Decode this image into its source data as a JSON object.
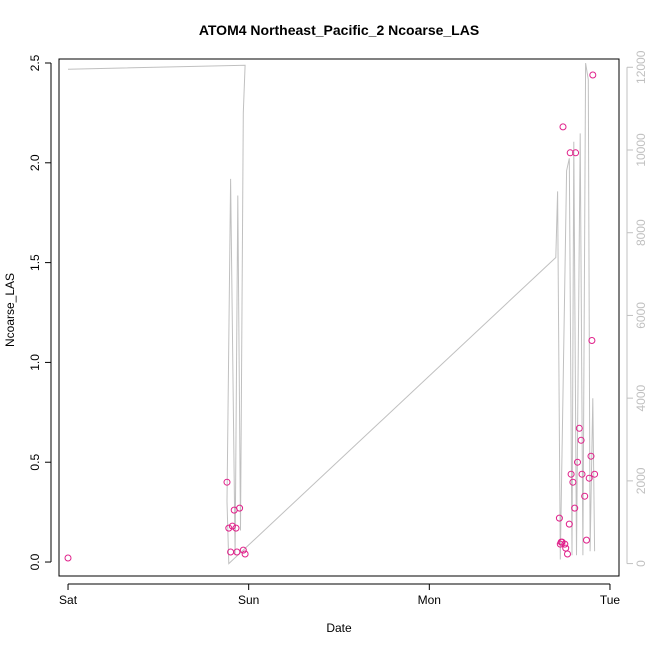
{
  "chart_data": {
    "type": "scatter",
    "title": "ATOM4 Northeast_Pacific_2 Ncoarse_LAS",
    "xlabel": "Date",
    "ylabel": "Ncoarse_LAS",
    "x_ticks": [
      "Sat",
      "Sun",
      "Mon",
      "Tue"
    ],
    "x_range_days": [
      -0.05,
      3.05
    ],
    "ylim": [
      -0.07,
      2.52
    ],
    "y_ticks": [
      "0.0",
      "0.5",
      "1.0",
      "1.5",
      "2.0",
      "2.5"
    ],
    "y_tick_values": [
      0,
      0.5,
      1.0,
      1.5,
      2.0,
      2.5
    ],
    "y2_ticks": [
      "0",
      "2000",
      "4000",
      "6000",
      "8000",
      "10000",
      "12000"
    ],
    "y2_tick_values": [
      0,
      2000,
      4000,
      6000,
      8000,
      10000,
      12000
    ],
    "y2_range": [
      -300,
      12200
    ],
    "grid": false,
    "colors": {
      "points": "#e0208a",
      "line": "#c0c0c0",
      "axis": "#000000",
      "y2_axis": "#c0c0c0"
    },
    "series": [
      {
        "kind": "points",
        "points": [
          [
            0.0,
            0.02
          ],
          [
            0.88,
            0.4
          ],
          [
            0.89,
            0.17
          ],
          [
            0.9,
            0.05
          ],
          [
            0.91,
            0.18
          ],
          [
            0.92,
            0.26
          ],
          [
            0.93,
            0.17
          ],
          [
            0.935,
            0.05
          ],
          [
            0.95,
            0.27
          ],
          [
            0.97,
            0.06
          ],
          [
            0.98,
            0.04
          ],
          [
            2.72,
            0.22
          ],
          [
            2.725,
            0.09
          ],
          [
            2.73,
            0.1
          ],
          [
            2.735,
            0.1
          ],
          [
            2.74,
            2.18
          ],
          [
            2.75,
            0.09
          ],
          [
            2.755,
            0.07
          ],
          [
            2.765,
            0.04
          ],
          [
            2.775,
            0.19
          ],
          [
            2.78,
            2.05
          ],
          [
            2.785,
            0.44
          ],
          [
            2.795,
            0.4
          ],
          [
            2.805,
            0.27
          ],
          [
            2.81,
            2.05
          ],
          [
            2.82,
            0.5
          ],
          [
            2.83,
            0.67
          ],
          [
            2.84,
            0.61
          ],
          [
            2.845,
            0.44
          ],
          [
            2.86,
            0.33
          ],
          [
            2.87,
            0.11
          ],
          [
            2.885,
            0.42
          ],
          [
            2.895,
            0.53
          ],
          [
            2.9,
            1.11
          ],
          [
            2.905,
            2.44
          ],
          [
            2.915,
            0.44
          ]
        ]
      },
      {
        "kind": "line",
        "axis": "y2",
        "points": [
          [
            0.0,
            11950
          ],
          [
            0.98,
            12050
          ],
          [
            0.97,
            10900
          ],
          [
            0.955,
            800
          ],
          [
            0.94,
            8900
          ],
          [
            0.925,
            200
          ],
          [
            0.9,
            9300
          ],
          [
            0.88,
            1500
          ],
          [
            0.89,
            0
          ],
          [
            2.7,
            7400
          ],
          [
            2.71,
            9000
          ],
          [
            2.725,
            100
          ],
          [
            2.76,
            9500
          ],
          [
            2.775,
            9800
          ],
          [
            2.79,
            200
          ],
          [
            2.8,
            10200
          ],
          [
            2.815,
            200
          ],
          [
            2.835,
            10400
          ],
          [
            2.85,
            200
          ],
          [
            2.865,
            12100
          ],
          [
            2.88,
            11700
          ],
          [
            2.89,
            300
          ],
          [
            2.905,
            4000
          ],
          [
            2.915,
            300
          ]
        ]
      }
    ]
  }
}
